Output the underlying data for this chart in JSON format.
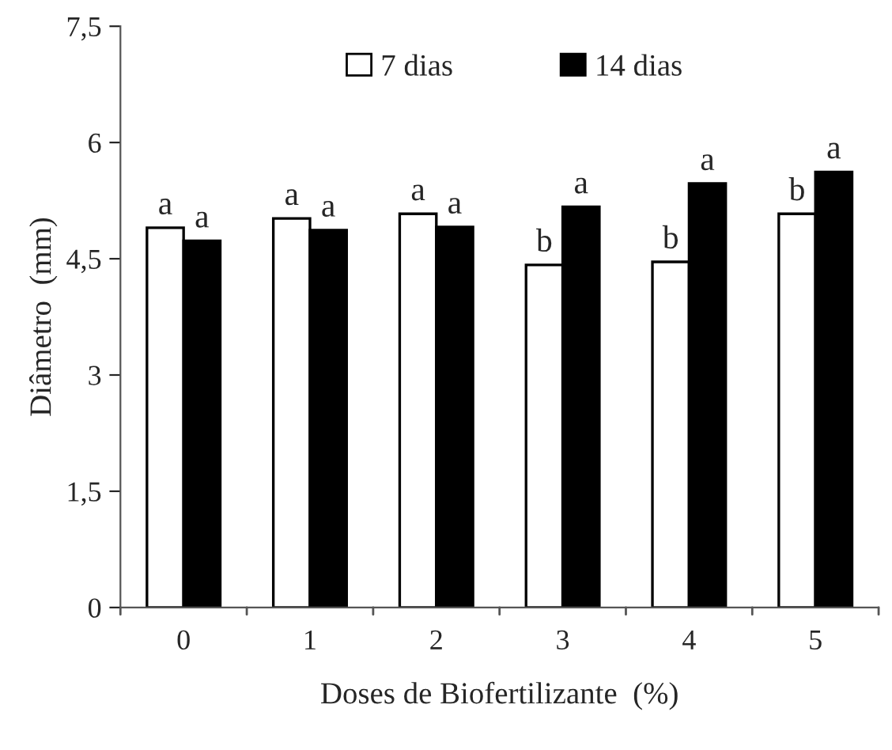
{
  "chart_data": {
    "type": "bar",
    "xlabel": "Doses de Biofertilizante  (%)",
    "ylabel": "Diâmetro  (mm)",
    "categories": [
      "0",
      "1",
      "2",
      "3",
      "4",
      "5"
    ],
    "series": [
      {
        "name": "7 dias",
        "color": "#ffffff",
        "values": [
          4.9,
          5.02,
          5.08,
          4.42,
          4.46,
          5.08
        ],
        "value_labels": [
          "a",
          "a",
          "a",
          "b",
          "b",
          "b"
        ]
      },
      {
        "name": "14 dias",
        "color": "#000000",
        "values": [
          4.73,
          4.87,
          4.91,
          5.17,
          5.47,
          5.62
        ],
        "value_labels": [
          "a",
          "a",
          "a",
          "a",
          "a",
          "a"
        ]
      }
    ],
    "ylim": [
      0,
      7.5
    ],
    "yticks": [
      0,
      {
        "value": 1.5,
        "label": "1,5"
      },
      3,
      {
        "value": 4.5,
        "label": "4,5"
      },
      6,
      {
        "value": 7.5,
        "label": "7,5"
      }
    ],
    "grid": false,
    "legend": "top"
  }
}
